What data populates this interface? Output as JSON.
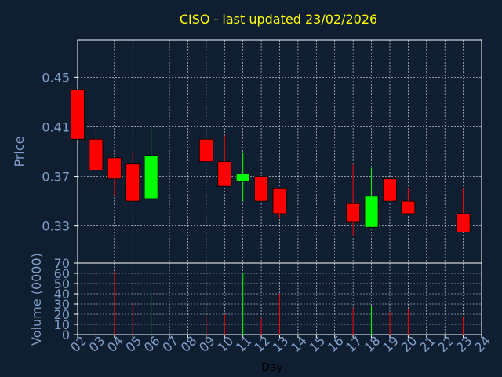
{
  "colors": {
    "background": "#0f1f31",
    "title": "#ffff00",
    "axis_text": "#7f9fc8",
    "plot_border": "#ffffff",
    "grid": "#ffffff",
    "up": "#00ff00",
    "down": "#ff0000",
    "ink": "#000000"
  },
  "chart_data": [
    {
      "type": "candlestick",
      "title": "CISO - last updated 23/02/2026",
      "xlabel": "",
      "ylabel": "Price",
      "ylim": [
        0.3,
        0.48
      ],
      "yticks": [
        0.33,
        0.37,
        0.41,
        0.45
      ],
      "grid": true,
      "candles": [
        {
          "day": "02",
          "open": 0.44,
          "high": 0.44,
          "low": 0.4,
          "close": 0.4
        },
        {
          "day": "03",
          "open": 0.4,
          "high": 0.41,
          "low": 0.363,
          "close": 0.375
        },
        {
          "day": "04",
          "open": 0.385,
          "high": 0.385,
          "low": 0.355,
          "close": 0.368
        },
        {
          "day": "05",
          "open": 0.38,
          "high": 0.39,
          "low": 0.35,
          "close": 0.35
        },
        {
          "day": "06",
          "open": 0.352,
          "high": 0.41,
          "low": 0.352,
          "close": 0.387
        },
        {
          "day": "09",
          "open": 0.4,
          "high": 0.4,
          "low": 0.382,
          "close": 0.382
        },
        {
          "day": "10",
          "open": 0.382,
          "high": 0.403,
          "low": 0.362,
          "close": 0.362
        },
        {
          "day": "11",
          "open": 0.366,
          "high": 0.389,
          "low": 0.35,
          "close": 0.372
        },
        {
          "day": "12",
          "open": 0.37,
          "high": 0.37,
          "low": 0.35,
          "close": 0.35
        },
        {
          "day": "13",
          "open": 0.36,
          "high": 0.36,
          "low": 0.336,
          "close": 0.34
        },
        {
          "day": "17",
          "open": 0.348,
          "high": 0.38,
          "low": 0.322,
          "close": 0.333
        },
        {
          "day": "18",
          "open": 0.329,
          "high": 0.377,
          "low": 0.329,
          "close": 0.354
        },
        {
          "day": "19",
          "open": 0.368,
          "high": 0.368,
          "low": 0.35,
          "close": 0.35
        },
        {
          "day": "20",
          "open": 0.35,
          "high": 0.36,
          "low": 0.34,
          "close": 0.34
        },
        {
          "day": "23",
          "open": 0.34,
          "high": 0.36,
          "low": 0.325,
          "close": 0.325
        }
      ]
    },
    {
      "type": "bar",
      "xlabel": "Day",
      "ylabel": "Volume (0000)",
      "ylim": [
        0,
        70
      ],
      "yticks": [
        0,
        10,
        20,
        30,
        40,
        50,
        60,
        70
      ],
      "grid": true,
      "categories": [
        "02",
        "03",
        "04",
        "05",
        "06",
        "07",
        "08",
        "09",
        "10",
        "11",
        "12",
        "13",
        "14",
        "15",
        "16",
        "17",
        "18",
        "19",
        "20",
        "21",
        "22",
        "23",
        "24"
      ],
      "values": [
        0,
        65,
        62,
        32,
        41,
        0,
        0,
        18,
        20,
        60,
        16,
        40,
        0,
        0,
        0,
        26,
        28,
        22,
        25,
        0,
        0,
        18,
        0
      ],
      "colors": [
        "down",
        "down",
        "down",
        "down",
        "up",
        "none",
        "none",
        "down",
        "down",
        "up",
        "down",
        "down",
        "none",
        "none",
        "none",
        "down",
        "up",
        "down",
        "down",
        "none",
        "none",
        "down",
        "none"
      ]
    }
  ]
}
